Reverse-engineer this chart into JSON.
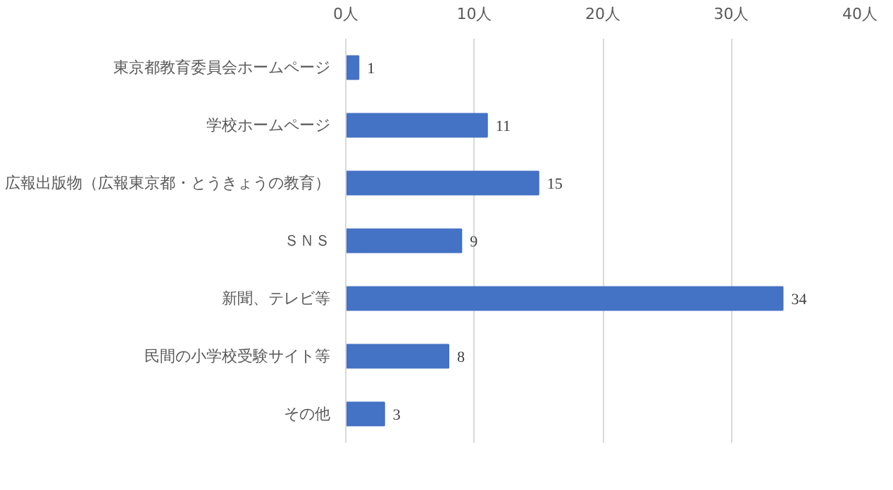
{
  "chart_data": {
    "type": "bar",
    "orientation": "horizontal",
    "categories": [
      "東京都教育委員会ホームページ",
      "学校ホームページ",
      "広報出版物（広報東京都・とうきょうの教育）",
      "ＳＮＳ",
      "新聞、テレビ等",
      "民間の小学校受験サイト等",
      "その他"
    ],
    "values": [
      1,
      11,
      15,
      9,
      34,
      8,
      3
    ],
    "color": "#4472c4",
    "xlim": [
      0,
      40
    ],
    "xticks": [
      {
        "value": 0,
        "label": "0人"
      },
      {
        "value": 10,
        "label": "10人"
      },
      {
        "value": 20,
        "label": "20人"
      },
      {
        "value": 30,
        "label": "30人"
      },
      {
        "value": 40,
        "label": "40人"
      }
    ],
    "grid": "x",
    "data_labels": true
  }
}
